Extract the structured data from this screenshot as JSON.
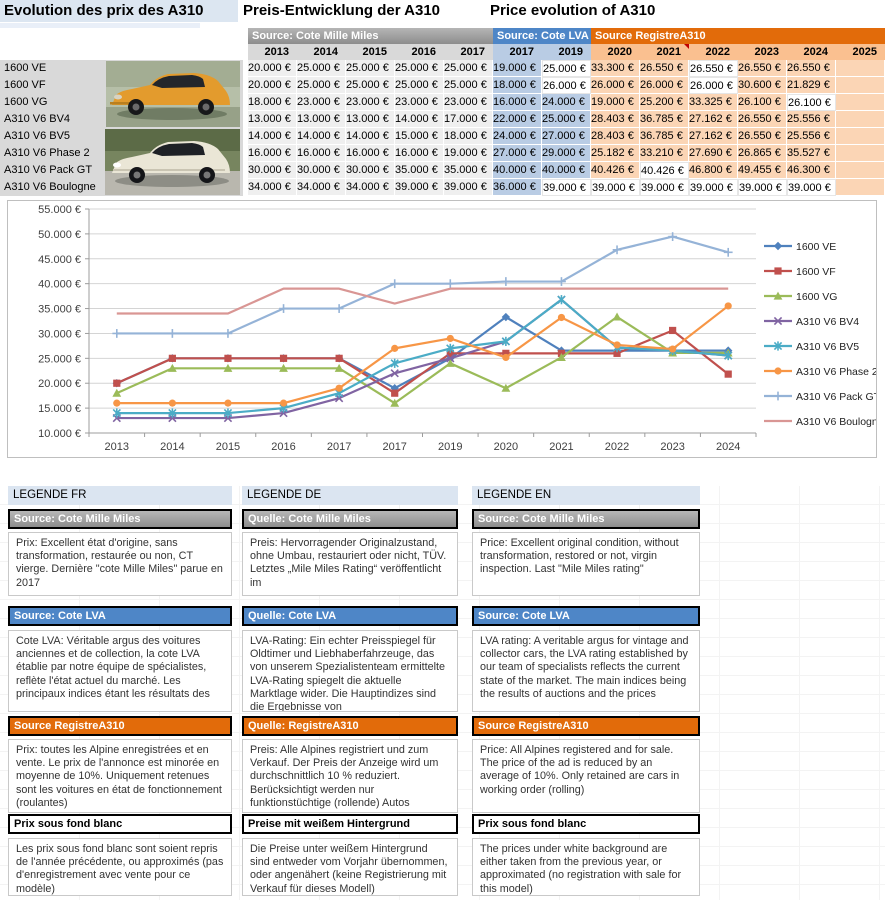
{
  "titles": {
    "fr": "Evolution des prix des A310",
    "de": "Preis-Entwicklung der A310",
    "en": "Price evolution of A310"
  },
  "colors": {
    "source_gray": "#9a9a9a",
    "source_blue": "#4e86c7",
    "source_orange": "#e26b0a",
    "year_gray": "#d9d9d9",
    "year_blue": "#b9cce4",
    "year_orange": "#fac090",
    "cell_gray": "#efefef",
    "cell_blue": "#b9cce4",
    "cell_orange": "#fbd5b5",
    "legend_title_bg": "#dbe5f1",
    "comment_marker": "#c00000"
  },
  "table": {
    "currency_suffix": " €",
    "segments": [
      {
        "label": "Source: Cote Mille Miles",
        "theme": "gray",
        "years": [
          "2013",
          "2014",
          "2015",
          "2016",
          "2017"
        ]
      },
      {
        "label": "Source: Cote LVA",
        "theme": "blue",
        "years": [
          "2017",
          "2019"
        ]
      },
      {
        "label": "Source RegistreA310",
        "theme": "orange",
        "years": [
          "2020",
          "2021",
          "2022",
          "2023",
          "2024",
          "2025"
        ]
      }
    ],
    "comment_year_index": 8
  },
  "chart_data": {
    "type": "line",
    "title": "",
    "x_categories": [
      "2013",
      "2014",
      "2015",
      "2016",
      "2017",
      "2017",
      "2019",
      "2020",
      "2021",
      "2022",
      "2023",
      "2024"
    ],
    "ylim": [
      10000,
      55000
    ],
    "ytick_step": 5000,
    "ytick_suffix": " €",
    "grid": true,
    "legend_position": "right",
    "series": [
      {
        "name": "1600 VE",
        "color": "#4F81BD",
        "marker": "diamond",
        "values": [
          20000,
          25000,
          25000,
          25000,
          25000,
          19000,
          25000,
          33300,
          26550,
          26550,
          26550,
          26550
        ],
        "white_bg_cols": [
          6,
          9
        ]
      },
      {
        "name": "1600 VF",
        "color": "#C0504D",
        "marker": "square",
        "values": [
          20000,
          25000,
          25000,
          25000,
          25000,
          18000,
          26000,
          26000,
          26000,
          26000,
          30600,
          21829
        ],
        "white_bg_cols": [
          6,
          9
        ]
      },
      {
        "name": "1600 VG",
        "color": "#9BBB59",
        "marker": "triangle",
        "values": [
          18000,
          23000,
          23000,
          23000,
          23000,
          16000,
          24000,
          19000,
          25200,
          33325,
          26100,
          26100
        ],
        "white_bg_cols": [
          11
        ]
      },
      {
        "name": "A310 V6 BV4",
        "color": "#8064A2",
        "marker": "x",
        "values": [
          13000,
          13000,
          13000,
          14000,
          17000,
          22000,
          25000,
          28403,
          36785,
          27162,
          26550,
          25556
        ],
        "white_bg_cols": []
      },
      {
        "name": "A310 V6 BV5",
        "color": "#4BACC6",
        "marker": "star",
        "values": [
          14000,
          14000,
          14000,
          15000,
          18000,
          24000,
          27000,
          28403,
          36785,
          27162,
          26550,
          25556
        ],
        "white_bg_cols": []
      },
      {
        "name": "A310 V6 Phase 2",
        "color": "#F79646",
        "marker": "circle",
        "values": [
          16000,
          16000,
          16000,
          16000,
          19000,
          27000,
          29000,
          25182,
          33210,
          27690,
          26865,
          35527
        ],
        "white_bg_cols": []
      },
      {
        "name": "A310 V6 Pack GT",
        "color": "#95B3D7",
        "marker": "plus",
        "values": [
          30000,
          30000,
          30000,
          35000,
          35000,
          40000,
          40000,
          40426,
          40426,
          46800,
          49455,
          46300
        ],
        "white_bg_cols": [
          8
        ]
      },
      {
        "name": "A310 V6 Boulogne",
        "color": "#D99694",
        "marker": "none",
        "values": [
          34000,
          34000,
          34000,
          39000,
          39000,
          36000,
          39000,
          39000,
          39000,
          39000,
          39000,
          39000
        ],
        "white_bg_cols": [
          6,
          7,
          8,
          9,
          10,
          11
        ]
      }
    ]
  },
  "legend_sections": [
    {
      "id": "fr",
      "title": "LEGENDE FR",
      "blocks": [
        {
          "header": "Source: Cote Mille Miles",
          "theme": "gray",
          "text": "Prix: Excellent état d'origine, sans transformation, restaurée ou non, CT vierge. Dernière \"cote Mille Miles\" parue en 2017"
        },
        {
          "header": "Source: Cote LVA",
          "theme": "blue",
          "text": "Cote LVA: Véritable argus des voitures anciennes et de collection, la cote LVA établie par notre équipe de spécialistes, reflète l'état actuel du marché. Les principaux indices étant les résultats des"
        },
        {
          "header": "Source RegistreA310",
          "theme": "orange",
          "text": "Prix: toutes les Alpine enregistrées et en vente. Le prix de l'annonce est minorée en moyenne de 10%. Uniquement retenues sont les voitures en état de fonctionnement (roulantes)"
        },
        {
          "header": "Prix sous fond blanc",
          "theme": "white",
          "text": "Les prix sous fond blanc sont soient repris de l'année précédente, ou approximés (pas d'enregistrement avec vente pour ce modèle)"
        }
      ]
    },
    {
      "id": "de",
      "title": "LEGENDE DE",
      "blocks": [
        {
          "header": "Quelle: Cote Mille Miles",
          "theme": "gray",
          "text": "Preis: Hervorragender Originalzustand, ohne Umbau, restauriert oder nicht, TÜV. Letztes „Mile Miles Rating“ veröffentlicht im"
        },
        {
          "header": "Quelle: Cote LVA",
          "theme": "blue",
          "text": "LVA-Rating: Ein echter Preisspiegel für Oldtimer und Liebhaberfahrzeuge, das von unserem Spezialistenteam ermittelte LVA-Rating spiegelt die aktuelle Marktlage wider. Die Hauptindizes sind die Ergebnisse von"
        },
        {
          "header": "Quelle: RegistreA310",
          "theme": "orange",
          "text": "Preis: Alle Alpines registriert und zum Verkauf. Der Preis der Anzeige wird um durchschnittlich 10 % reduziert. Berücksichtigt werden nur funktionstüchtige (rollende) Autos"
        },
        {
          "header": "Preise mit weißem Hintergrund",
          "theme": "white",
          "text": "Die Preise unter weißem Hintergrund sind entweder vom Vorjahr übernommen, oder angenähert (keine Registrierung mit Verkauf für dieses Modell)"
        }
      ]
    },
    {
      "id": "en",
      "title": "LEGENDE EN",
      "blocks": [
        {
          "header": "Source: Cote Mille Miles",
          "theme": "gray",
          "text": "Price: Excellent original condition, without transformation, restored or not, virgin inspection. Last \"Mile Miles rating\""
        },
        {
          "header": "Source: Cote LVA",
          "theme": "blue",
          "text": "LVA rating: A veritable argus for vintage and collector cars, the LVA rating established by our team of specialists reflects the current state of the market. The main indices being the results of auctions and the prices"
        },
        {
          "header": "Source RegistreA310",
          "theme": "orange",
          "text": "Price: All Alpines registered and for sale. The price of the ad is reduced by an average of 10%. Only retained are cars in working order (rolling)"
        },
        {
          "header": "Prix sous fond blanc",
          "theme": "white",
          "text": "The prices under white background are either taken from the previous year, or approximated (no registration with sale for this model)"
        }
      ]
    }
  ]
}
